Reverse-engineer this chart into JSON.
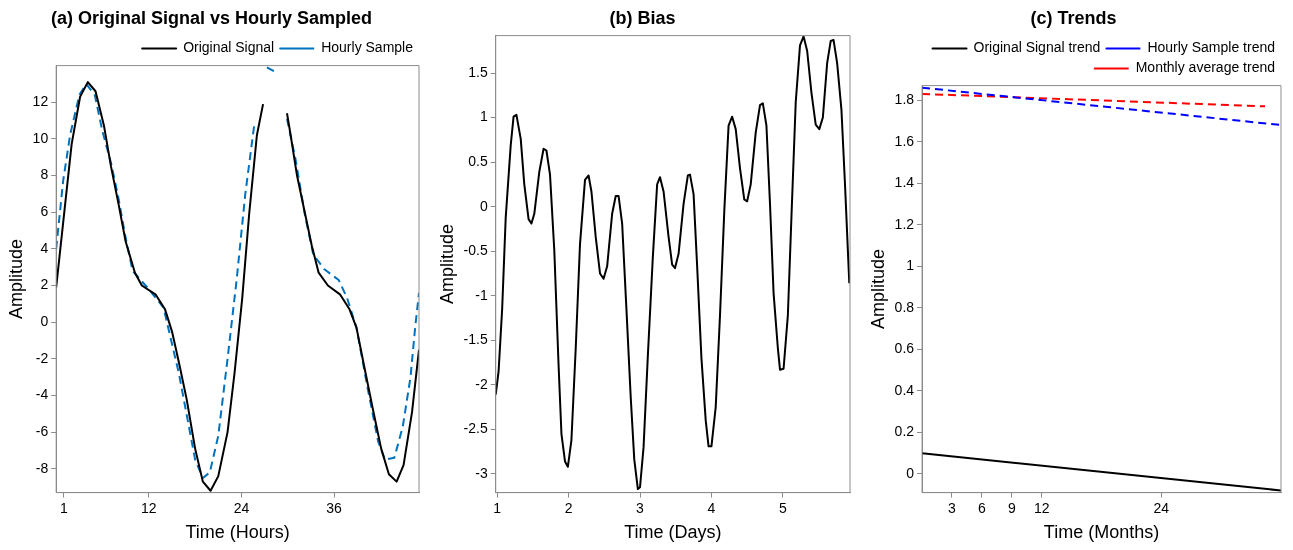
{
  "chart_data": [
    {
      "type": "line",
      "title": "(a) Original Signal vs Hourly Sampled",
      "xlabel": "Time (Hours)",
      "ylabel": "Amplitude",
      "xlim": [
        0,
        47
      ],
      "ylim": [
        -9.3,
        14.0
      ],
      "xticks": [
        1,
        12,
        24,
        36
      ],
      "yticks": [
        -8,
        -6,
        -4,
        -2,
        0,
        2,
        4,
        6,
        8,
        10,
        12
      ],
      "legend": "top right",
      "series": [
        {
          "name": "Original Signal",
          "color": "#000000",
          "line_style": "solid",
          "x": [
            0,
            2.0,
            3.1,
            4.1,
            5.1,
            6.2,
            7.1,
            8.1,
            9.0,
            10.2,
            11.1,
            12.9,
            14.1,
            15.0,
            15.9,
            16.9,
            18.0,
            19.0,
            20.0,
            21.0,
            22.2,
            23.1,
            24.1,
            25.0,
            26.0,
            26.8,
            28.4,
            29.9,
            30.3,
            31.2,
            32.2,
            33.1,
            34.0,
            35.2,
            36.8,
            38.0,
            38.9,
            39.8,
            41.0,
            42.1,
            43.1,
            44.1,
            45.0,
            46.1,
            47.0
          ],
          "values": [
            1.9,
            9.7,
            12.3,
            13.1,
            12.6,
            10.7,
            8.5,
            6.4,
            4.4,
            2.7,
            2.0,
            1.5,
            0.7,
            -0.5,
            -2.2,
            -4.2,
            -6.9,
            -8.7,
            -9.2,
            -8.4,
            -6.0,
            -2.8,
            1.3,
            5.9,
            10.2,
            11.9,
            null,
            11.4,
            10.4,
            8.0,
            6.0,
            4.2,
            2.7,
            2.0,
            1.5,
            0.7,
            -0.3,
            -2.2,
            -4.7,
            -6.9,
            -8.3,
            -8.7,
            -7.8,
            -4.9,
            -1.5
          ]
        },
        {
          "name": "Hourly Sample",
          "color": "#0072bd",
          "line_style": "dashed",
          "x": [
            0,
            0.9,
            1.8,
            3.0,
            3.9,
            5.0,
            6.0,
            7.1,
            8.1,
            9.0,
            9.9,
            12.0,
            13.9,
            15.9,
            18.0,
            19.0,
            19.9,
            21.0,
            22.2,
            23.4,
            24.5,
            25.7,
            26.6,
            27.3,
            28.2,
            29.1,
            29.9,
            31.0,
            32.2,
            33.3,
            34.7,
            36.6,
            37.7,
            38.9,
            40.3,
            41.7,
            42.6,
            43.8,
            44.9,
            45.9,
            46.5,
            47.0
          ],
          "values": [
            4.0,
            7.7,
            10.2,
            12.4,
            13.0,
            12.4,
            10.4,
            8.7,
            6.7,
            4.6,
            2.8,
            1.8,
            0.8,
            -2.8,
            -7.5,
            -8.5,
            -8.2,
            -6.2,
            -2.0,
            2.4,
            7.0,
            10.9,
            null,
            13.9,
            13.7,
            null,
            11.1,
            8.9,
            5.9,
            3.7,
            2.9,
            2.3,
            1.3,
            -0.3,
            -3.5,
            -6.5,
            -7.5,
            -7.4,
            -5.7,
            -3.0,
            -0.3,
            1.6
          ]
        }
      ]
    },
    {
      "type": "line",
      "title": "(b) Bias",
      "xlabel": "Time (Days)",
      "ylabel": "Amplitude",
      "xlim": [
        0.98,
        5.94
      ],
      "ylim": [
        -3.21,
        1.92
      ],
      "xticks": [
        1,
        2,
        3,
        4,
        5
      ],
      "yticks": [
        -3,
        -2.5,
        -2,
        -1.5,
        -1,
        -0.5,
        0,
        0.5,
        1,
        1.5
      ],
      "series": [
        {
          "color": "#000000",
          "line_style": "solid",
          "x": [
            0.98,
            1.02,
            1.07,
            1.12,
            1.19,
            1.23,
            1.27,
            1.33,
            1.38,
            1.44,
            1.48,
            1.52,
            1.59,
            1.65,
            1.69,
            1.74,
            1.8,
            1.86,
            1.9,
            1.95,
            1.99,
            2.04,
            2.1,
            2.16,
            2.23,
            2.28,
            2.32,
            2.38,
            2.44,
            2.49,
            2.54,
            2.61,
            2.66,
            2.7,
            2.75,
            2.81,
            2.87,
            2.92,
            2.97,
            3.0,
            3.05,
            3.11,
            3.18,
            3.24,
            3.28,
            3.33,
            3.4,
            3.45,
            3.49,
            3.54,
            3.61,
            3.67,
            3.7,
            3.75,
            3.8,
            3.86,
            3.92,
            3.96,
            4.0,
            4.06,
            4.12,
            4.18,
            4.24,
            4.29,
            4.34,
            4.4,
            4.46,
            4.5,
            4.55,
            4.62,
            4.68,
            4.72,
            4.77,
            4.82,
            4.87,
            4.93,
            4.96,
            5.01,
            5.07,
            5.12,
            5.18,
            5.24,
            5.29,
            5.34,
            5.4,
            5.46,
            5.51,
            5.56,
            5.62,
            5.67,
            5.71,
            5.76,
            5.82,
            5.87,
            5.93
          ],
          "values": [
            -2.11,
            -1.85,
            -1.15,
            -0.12,
            0.69,
            1.01,
            1.03,
            0.76,
            0.25,
            -0.14,
            -0.19,
            -0.08,
            0.39,
            0.65,
            0.63,
            0.36,
            -0.49,
            -1.78,
            -2.55,
            -2.86,
            -2.92,
            -2.62,
            -1.59,
            -0.42,
            0.3,
            0.35,
            0.17,
            -0.34,
            -0.75,
            -0.81,
            -0.67,
            -0.08,
            0.12,
            0.12,
            -0.19,
            -1.15,
            -2.14,
            -2.84,
            -3.17,
            -3.15,
            -2.7,
            -1.67,
            -0.56,
            0.25,
            0.33,
            0.17,
            -0.34,
            -0.65,
            -0.69,
            -0.53,
            0.03,
            0.35,
            0.36,
            0.14,
            -0.67,
            -1.7,
            -2.4,
            -2.69,
            -2.69,
            -2.25,
            -1.22,
            -0.05,
            0.91,
            1.01,
            0.87,
            0.43,
            0.08,
            0.06,
            0.25,
            0.83,
            1.14,
            1.16,
            0.91,
            0.03,
            -0.97,
            -1.59,
            -1.83,
            -1.82,
            -1.22,
            -0.12,
            1.17,
            1.81,
            1.91,
            1.75,
            1.28,
            0.92,
            0.87,
            1.0,
            1.61,
            1.86,
            1.87,
            1.61,
            1.09,
            0.25,
            -0.86
          ]
        }
      ]
    },
    {
      "type": "line",
      "title": "(c) Trends",
      "xlabel": "Time (Months)",
      "ylabel": "Amplitude",
      "xlim": [
        0,
        36
      ],
      "ylim": [
        -0.09,
        1.87
      ],
      "xticks": [
        3,
        6,
        9,
        12,
        24
      ],
      "yticks": [
        0,
        0.2,
        0.4,
        0.6,
        0.8,
        1,
        1.2,
        1.4,
        1.6,
        1.8
      ],
      "legend": "top right",
      "series": [
        {
          "name": "Original Signal trend",
          "color": "#000000",
          "line_style": "solid",
          "x": [
            0,
            36
          ],
          "values": [
            0.1,
            -0.08
          ]
        },
        {
          "name": "Hourly Sample trend",
          "color": "#0000ff",
          "line_style": "dashed",
          "x": [
            0,
            36
          ],
          "values": [
            1.86,
            1.68
          ]
        },
        {
          "name": "Monthly average trend",
          "color": "#ff0000",
          "line_style": "dashed",
          "x": [
            0,
            34.4
          ],
          "values": [
            1.83,
            1.77
          ]
        }
      ]
    }
  ]
}
